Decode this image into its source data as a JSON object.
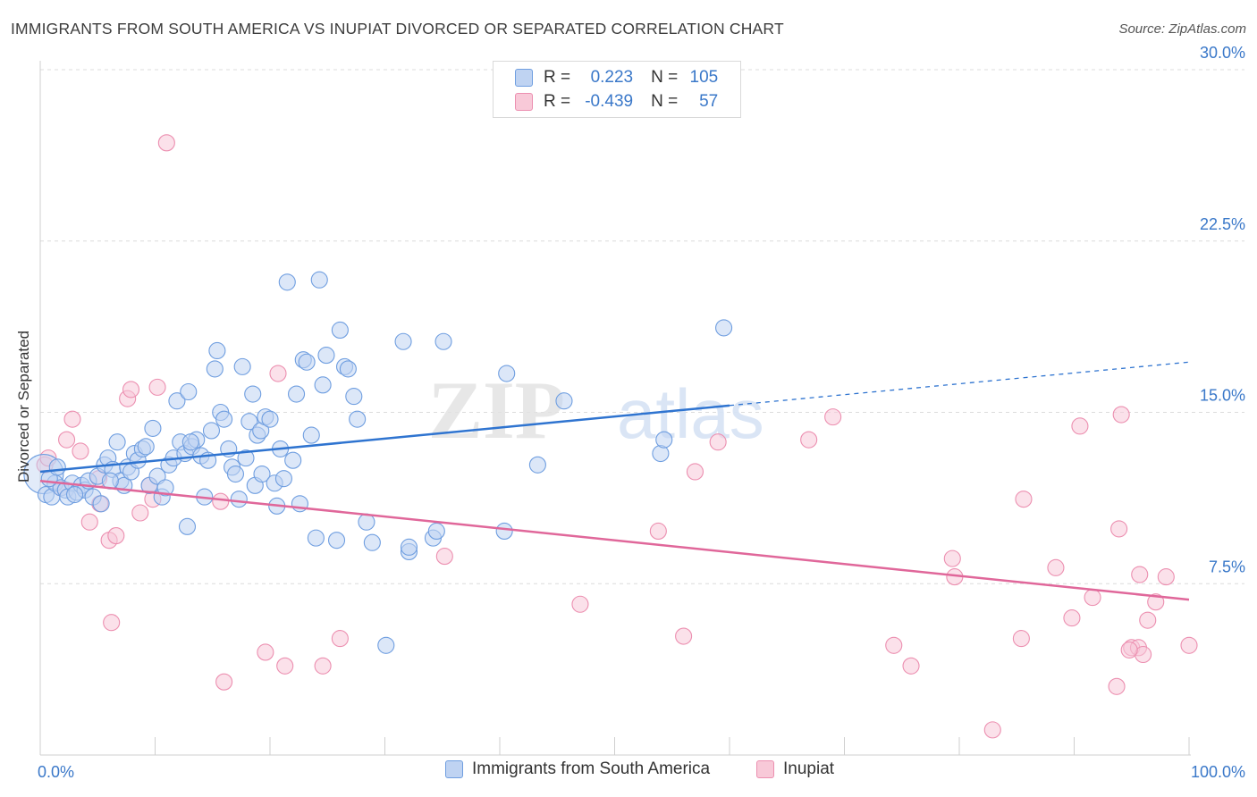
{
  "title": "IMMIGRANTS FROM SOUTH AMERICA VS INUPIAT DIVORCED OR SEPARATED CORRELATION CHART",
  "source": "Source: ZipAtlas.com",
  "watermark": {
    "zip": "ZIP",
    "atlas": "atlas"
  },
  "legend": {
    "r_label": "R =",
    "n_label": "N =",
    "rows": [
      {
        "series": "Immigrants from South America",
        "r": "0.223",
        "n": "105"
      },
      {
        "series": "Inupiat",
        "r": "-0.439",
        "n": "57"
      }
    ]
  },
  "colors": {
    "blue_fill": "#bfd3f2",
    "blue_stroke": "#6f9ee0",
    "blue_line": "#2f74d0",
    "pink_fill": "#f8c9d8",
    "pink_stroke": "#ec8fb0",
    "pink_line": "#e0679a",
    "tick_text": "#3a78c9",
    "grid": "#dcdcdc"
  },
  "chart_data": {
    "type": "scatter",
    "title": "IMMIGRANTS FROM SOUTH AMERICA VS INUPIAT DIVORCED OR SEPARATED CORRELATION CHART",
    "xlabel": "",
    "ylabel": "Divorced or Separated",
    "xlim": [
      0,
      100
    ],
    "ylim": [
      0,
      30.0
    ],
    "x_tick_labels": [
      "0.0%",
      "100.0%"
    ],
    "y_ticks": [
      7.5,
      15.0,
      22.5,
      30.0
    ],
    "y_tick_labels": [
      "7.5%",
      "15.0%",
      "22.5%",
      "30.0%"
    ],
    "grid": true,
    "legend_position": "top-center",
    "series": [
      {
        "name": "Immigrants from South America",
        "color": "#6f9ee0",
        "trend": {
          "x": [
            0,
            60,
            100
          ],
          "y": [
            12.4,
            15.3,
            17.2
          ],
          "dashed_from_x": 60
        },
        "points": [
          [
            0.3,
            12.3
          ],
          [
            0.5,
            11.4
          ],
          [
            1.0,
            11.3
          ],
          [
            1.3,
            11.9
          ],
          [
            1.8,
            11.7
          ],
          [
            2.2,
            11.6
          ],
          [
            2.4,
            11.3
          ],
          [
            2.8,
            11.9
          ],
          [
            3.2,
            11.5
          ],
          [
            3.6,
            11.8
          ],
          [
            3.9,
            11.6
          ],
          [
            4.2,
            12.0
          ],
          [
            4.6,
            11.3
          ],
          [
            5.0,
            12.2
          ],
          [
            5.3,
            11.0
          ],
          [
            5.6,
            12.7
          ],
          [
            5.9,
            13.0
          ],
          [
            6.3,
            12.5
          ],
          [
            6.7,
            13.7
          ],
          [
            7.0,
            12.0
          ],
          [
            7.3,
            11.8
          ],
          [
            7.6,
            12.6
          ],
          [
            7.9,
            12.4
          ],
          [
            8.2,
            13.2
          ],
          [
            8.5,
            12.9
          ],
          [
            8.9,
            13.4
          ],
          [
            9.2,
            13.5
          ],
          [
            9.5,
            11.8
          ],
          [
            9.8,
            14.3
          ],
          [
            10.2,
            12.2
          ],
          [
            10.6,
            11.3
          ],
          [
            10.9,
            11.7
          ],
          [
            11.2,
            12.7
          ],
          [
            11.6,
            13.0
          ],
          [
            11.9,
            15.5
          ],
          [
            12.2,
            13.7
          ],
          [
            12.6,
            13.2
          ],
          [
            12.9,
            15.9
          ],
          [
            13.2,
            13.5
          ],
          [
            13.6,
            13.8
          ],
          [
            12.8,
            10.0
          ],
          [
            13.1,
            13.7
          ],
          [
            14.0,
            13.1
          ],
          [
            14.3,
            11.3
          ],
          [
            14.6,
            12.9
          ],
          [
            14.9,
            14.2
          ],
          [
            15.2,
            16.9
          ],
          [
            15.4,
            17.7
          ],
          [
            15.7,
            15.0
          ],
          [
            16.0,
            14.7
          ],
          [
            16.4,
            13.4
          ],
          [
            16.7,
            12.6
          ],
          [
            17.0,
            12.3
          ],
          [
            17.3,
            11.2
          ],
          [
            17.6,
            17.0
          ],
          [
            17.9,
            13.0
          ],
          [
            18.2,
            14.6
          ],
          [
            18.5,
            15.8
          ],
          [
            18.7,
            11.8
          ],
          [
            18.9,
            14.0
          ],
          [
            19.2,
            14.2
          ],
          [
            19.3,
            12.3
          ],
          [
            19.6,
            14.8
          ],
          [
            20.0,
            14.7
          ],
          [
            20.4,
            11.9
          ],
          [
            20.6,
            10.9
          ],
          [
            20.9,
            13.4
          ],
          [
            21.2,
            12.1
          ],
          [
            21.5,
            20.7
          ],
          [
            22.0,
            12.9
          ],
          [
            22.3,
            15.8
          ],
          [
            22.6,
            11.0
          ],
          [
            22.9,
            17.3
          ],
          [
            23.2,
            17.2
          ],
          [
            23.6,
            14.0
          ],
          [
            24.0,
            9.5
          ],
          [
            24.3,
            20.8
          ],
          [
            24.6,
            16.2
          ],
          [
            24.9,
            17.5
          ],
          [
            25.8,
            9.4
          ],
          [
            26.1,
            18.6
          ],
          [
            26.5,
            17.0
          ],
          [
            26.8,
            16.9
          ],
          [
            27.3,
            15.7
          ],
          [
            27.6,
            14.7
          ],
          [
            28.4,
            10.2
          ],
          [
            28.9,
            9.3
          ],
          [
            30.1,
            4.8
          ],
          [
            31.6,
            18.1
          ],
          [
            32.1,
            8.9
          ],
          [
            32.1,
            9.1
          ],
          [
            34.2,
            9.5
          ],
          [
            34.5,
            9.8
          ],
          [
            35.1,
            18.1
          ],
          [
            40.4,
            9.8
          ],
          [
            40.6,
            16.7
          ],
          [
            43.3,
            12.7
          ],
          [
            45.6,
            15.5
          ],
          [
            54.0,
            13.2
          ],
          [
            54.3,
            13.8
          ],
          [
            59.5,
            18.7
          ],
          [
            0.8,
            12.1
          ],
          [
            1.5,
            12.6
          ],
          [
            3.0,
            11.4
          ],
          [
            6.1,
            12.0
          ]
        ]
      },
      {
        "name": "Inupiat",
        "color": "#ec8fb0",
        "trend": {
          "x": [
            0,
            100
          ],
          "y": [
            12.0,
            6.8
          ]
        },
        "points": [
          [
            0.4,
            12.7
          ],
          [
            0.7,
            13.0
          ],
          [
            1.8,
            11.7
          ],
          [
            2.3,
            13.8
          ],
          [
            2.8,
            14.7
          ],
          [
            3.5,
            13.3
          ],
          [
            4.3,
            10.2
          ],
          [
            5.1,
            12.1
          ],
          [
            5.2,
            11.0
          ],
          [
            6.0,
            9.4
          ],
          [
            6.2,
            5.8
          ],
          [
            6.6,
            9.6
          ],
          [
            7.6,
            15.6
          ],
          [
            7.9,
            16.0
          ],
          [
            8.7,
            10.6
          ],
          [
            9.5,
            11.8
          ],
          [
            9.8,
            11.2
          ],
          [
            10.2,
            16.1
          ],
          [
            11.0,
            26.8
          ],
          [
            15.7,
            11.1
          ],
          [
            16.0,
            3.2
          ],
          [
            19.6,
            4.5
          ],
          [
            20.7,
            16.7
          ],
          [
            21.3,
            3.9
          ],
          [
            24.6,
            3.9
          ],
          [
            26.1,
            5.1
          ],
          [
            35.2,
            8.7
          ],
          [
            47.0,
            6.6
          ],
          [
            53.8,
            9.8
          ],
          [
            56.0,
            5.2
          ],
          [
            57.0,
            12.4
          ],
          [
            59.0,
            13.7
          ],
          [
            66.9,
            13.8
          ],
          [
            69.0,
            14.8
          ],
          [
            74.3,
            4.8
          ],
          [
            75.8,
            3.9
          ],
          [
            79.4,
            8.6
          ],
          [
            79.6,
            7.8
          ],
          [
            82.9,
            1.1
          ],
          [
            85.4,
            5.1
          ],
          [
            85.6,
            11.2
          ],
          [
            88.4,
            8.2
          ],
          [
            89.8,
            6.0
          ],
          [
            90.5,
            14.4
          ],
          [
            91.6,
            6.9
          ],
          [
            93.7,
            3.0
          ],
          [
            93.9,
            9.9
          ],
          [
            94.1,
            14.9
          ],
          [
            95.0,
            4.7
          ],
          [
            95.6,
            4.7
          ],
          [
            95.7,
            7.9
          ],
          [
            96.0,
            4.4
          ],
          [
            96.4,
            5.9
          ],
          [
            97.1,
            6.7
          ],
          [
            98.0,
            7.8
          ],
          [
            100.0,
            4.8
          ],
          [
            94.8,
            4.6
          ]
        ]
      }
    ]
  }
}
